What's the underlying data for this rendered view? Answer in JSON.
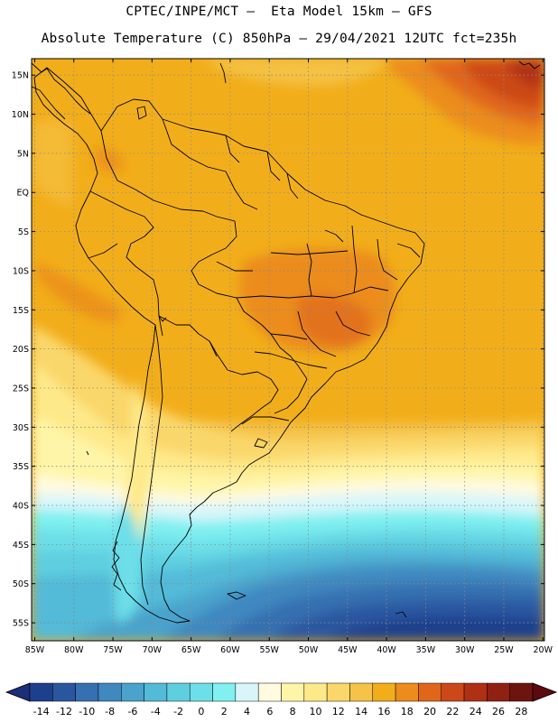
{
  "header": {
    "line1": "CPTEC/INPE/MCT –  Eta Model 15km – GFS",
    "line2": "Absolute Temperature (C) 850hPa – 29/04/2021 12UTC fct=235h"
  },
  "map": {
    "lat_labels": [
      "15N",
      "10N",
      "5N",
      "EQ",
      "5S",
      "10S",
      "15S",
      "20S",
      "25S",
      "30S",
      "35S",
      "40S",
      "45S",
      "50S",
      "55S"
    ],
    "lon_labels": [
      "85W",
      "80W",
      "75W",
      "70W",
      "65W",
      "60W",
      "55W",
      "50W",
      "45W",
      "40W",
      "35W",
      "30W",
      "25W",
      "20W"
    ],
    "lat_range": [
      17.1,
      -57.3
    ],
    "lon_range": [
      -85.4,
      -19.8
    ],
    "grid": true
  },
  "colorbar": {
    "labels": [
      "-14",
      "-12",
      "-10",
      "-8",
      "-6",
      "-4",
      "-2",
      "0",
      "2",
      "4",
      "6",
      "8",
      "10",
      "12",
      "14",
      "16",
      "18",
      "20",
      "22",
      "24",
      "26",
      "28"
    ],
    "colors": [
      "#1e3f8c",
      "#2a56a0",
      "#3570b0",
      "#3f88c0",
      "#4aa3cc",
      "#53bad8",
      "#5fcfe0",
      "#6ddfe8",
      "#80f0f0",
      "#d8f6fa",
      "#fffae0",
      "#fff5a8",
      "#fee98a",
      "#fad76a",
      "#f5c348",
      "#f2ae1a",
      "#eb8c1c",
      "#e0661a",
      "#cc4818",
      "#b03014",
      "#902012",
      "#6e1410"
    ],
    "under_color": "#1a2f78",
    "over_color": "#5c0a10"
  }
}
